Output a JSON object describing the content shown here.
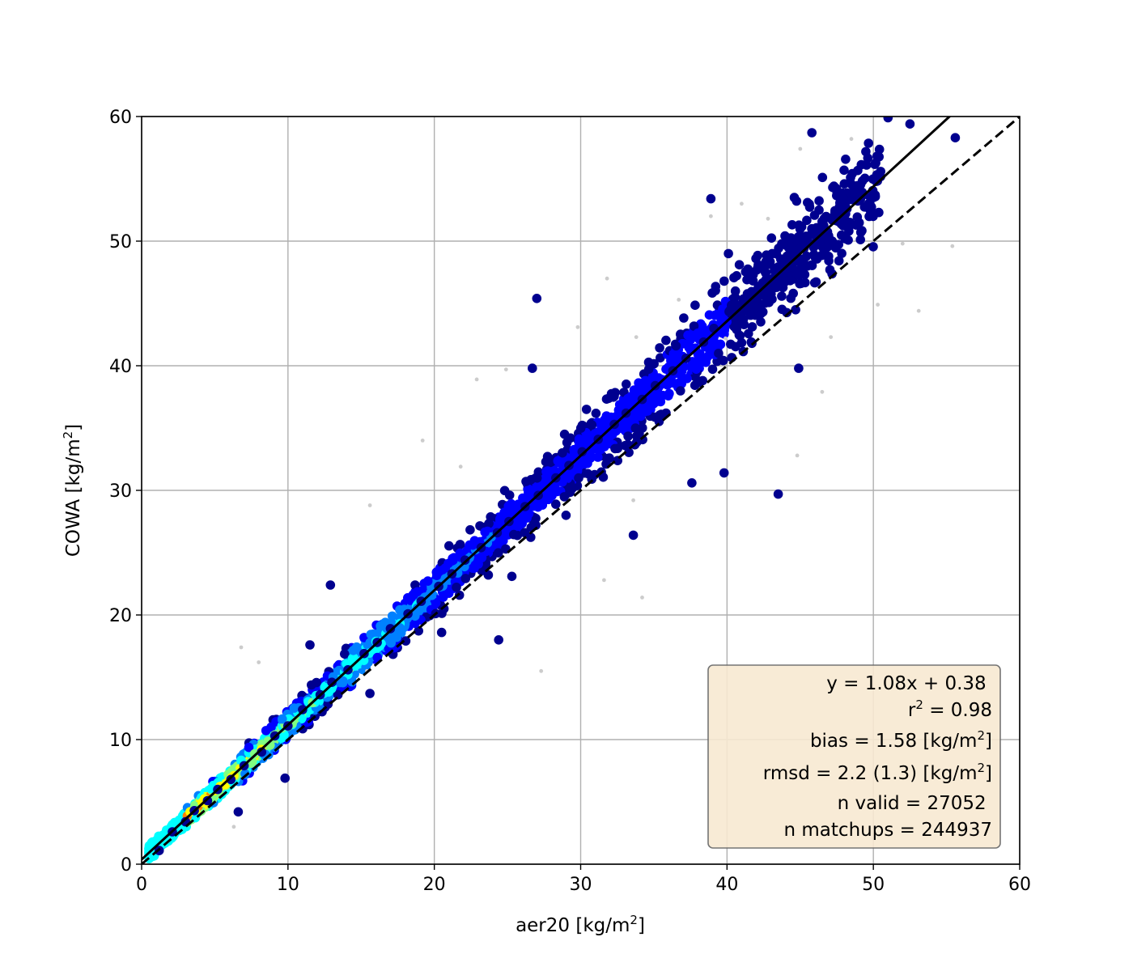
{
  "chart_data": {
    "type": "scatter",
    "title": "",
    "xlabel": {
      "text": "aer20 [kg/m",
      "sup": "2",
      "tail": "]"
    },
    "ylabel": {
      "text": "COWA [kg/m",
      "sup": "2",
      "tail": "]"
    },
    "xlim": [
      0,
      60
    ],
    "ylim": [
      0,
      60
    ],
    "xticks": [
      0,
      10,
      20,
      30,
      40,
      50,
      60
    ],
    "yticks": [
      0,
      10,
      20,
      30,
      40,
      50,
      60
    ],
    "grid": true,
    "fit_line": {
      "slope": 1.08,
      "intercept": 0.38,
      "style": "solid",
      "color": "#000000"
    },
    "identity_line": {
      "slope": 1.0,
      "intercept": 0.0,
      "style": "dashed",
      "color": "#000000"
    },
    "colormap": [
      "#00008f",
      "#0000ff",
      "#0080ff",
      "#00ffff",
      "#80ff80",
      "#ffff00",
      "#ff8000",
      "#ff0000"
    ],
    "background_points_color": "#cccccc",
    "stats_box": {
      "position": "bottom-right",
      "fill": "#f8e9d2",
      "lines": [
        {
          "text": "y = 1.08x + 0.38 "
        },
        {
          "pre": "r",
          "sup": "2",
          "post": " = 0.98"
        },
        {
          "pre": "bias = 1.58 [kg/m",
          "sup": "2",
          "post": "]"
        },
        {
          "pre": "rmsd = 2.2 (1.3) [kg/m",
          "sup": "2",
          "post": "]"
        },
        {
          "text": "n valid = 27052 "
        },
        {
          "text": "n matchups = 244937"
        }
      ]
    },
    "series": [
      {
        "role": "valid matchups (density-colored)",
        "points": [
          [
            1.2,
            1.1
          ],
          [
            2.1,
            2.6
          ],
          [
            3.0,
            3.4
          ],
          [
            3.6,
            4.3
          ],
          [
            4.5,
            5.1
          ],
          [
            5.2,
            6.0
          ],
          [
            6.1,
            6.8
          ],
          [
            7.0,
            7.9
          ],
          [
            8.2,
            9.0
          ],
          [
            9.1,
            10.3
          ],
          [
            10.0,
            11.1
          ],
          [
            11.0,
            12.4
          ],
          [
            12.2,
            13.6
          ],
          [
            13.0,
            14.6
          ],
          [
            14.1,
            15.6
          ],
          [
            15.2,
            16.9
          ],
          [
            16.1,
            17.8
          ],
          [
            17.0,
            18.9
          ],
          [
            18.2,
            20.1
          ],
          [
            19.1,
            21.1
          ],
          [
            20.3,
            22.3
          ],
          [
            21.2,
            23.3
          ],
          [
            22.1,
            24.4
          ],
          [
            23.2,
            25.4
          ],
          [
            24.3,
            26.6
          ],
          [
            25.1,
            27.5
          ],
          [
            26.2,
            28.7
          ],
          [
            27.1,
            29.6
          ],
          [
            28.3,
            31.0
          ],
          [
            29.2,
            32.0
          ],
          [
            30.1,
            33.1
          ],
          [
            31.2,
            34.1
          ],
          [
            32.3,
            35.3
          ],
          [
            33.1,
            36.2
          ],
          [
            34.2,
            37.3
          ],
          [
            35.1,
            38.4
          ],
          [
            36.3,
            39.6
          ],
          [
            37.2,
            40.6
          ],
          [
            38.4,
            41.9
          ],
          [
            39.1,
            43.0
          ],
          [
            40.5,
            44.1
          ],
          [
            41.6,
            45.3
          ],
          [
            42.2,
            46.1
          ],
          [
            43.5,
            47.2
          ],
          [
            44.3,
            48.4
          ],
          [
            45.1,
            49.5
          ],
          [
            46.2,
            50.4
          ],
          [
            47.4,
            51.9
          ],
          [
            48.2,
            52.6
          ],
          [
            49.3,
            53.7
          ],
          [
            12.9,
            22.4
          ],
          [
            11.5,
            17.6
          ],
          [
            27.0,
            45.4
          ],
          [
            26.7,
            39.8
          ],
          [
            24.4,
            18.0
          ],
          [
            30.4,
            36.5
          ],
          [
            38.9,
            53.4
          ],
          [
            39.8,
            31.4
          ],
          [
            43.5,
            29.7
          ],
          [
            33.6,
            26.4
          ],
          [
            37.6,
            30.6
          ],
          [
            40.1,
            49.0
          ],
          [
            44.9,
            39.8
          ],
          [
            41.7,
            41.8
          ],
          [
            45.8,
            58.7
          ],
          [
            51.0,
            59.9
          ],
          [
            52.5,
            59.4
          ],
          [
            55.6,
            58.3
          ],
          [
            50.2,
            54.8
          ],
          [
            44.6,
            53.5
          ],
          [
            6.6,
            4.2
          ],
          [
            9.8,
            6.9
          ],
          [
            15.6,
            13.7
          ],
          [
            20.5,
            18.6
          ],
          [
            25.3,
            23.1
          ],
          [
            29.0,
            28.0
          ],
          [
            35.5,
            36.1
          ],
          [
            28.9,
            34.5
          ]
        ]
      },
      {
        "role": "all matchups (background)",
        "points": [
          [
            6.8,
            17.4
          ],
          [
            8.0,
            16.2
          ],
          [
            15.4,
            15.5
          ],
          [
            22.9,
            38.9
          ],
          [
            24.9,
            39.7
          ],
          [
            29.8,
            43.1
          ],
          [
            31.8,
            47.0
          ],
          [
            33.8,
            42.3
          ],
          [
            36.7,
            45.3
          ],
          [
            38.9,
            52.0
          ],
          [
            41.0,
            53.0
          ],
          [
            42.8,
            51.8
          ],
          [
            45.0,
            57.4
          ],
          [
            48.5,
            58.2
          ],
          [
            50.3,
            44.9
          ],
          [
            53.1,
            44.4
          ],
          [
            55.4,
            49.6
          ],
          [
            52.0,
            49.8
          ],
          [
            39.9,
            42.2
          ],
          [
            47.1,
            42.3
          ],
          [
            33.6,
            29.2
          ],
          [
            34.2,
            21.4
          ],
          [
            31.6,
            22.8
          ],
          [
            27.3,
            15.5
          ],
          [
            44.8,
            32.8
          ],
          [
            46.5,
            37.9
          ],
          [
            6.3,
            3.0
          ],
          [
            19.2,
            34.0
          ],
          [
            15.6,
            28.8
          ],
          [
            21.8,
            31.9
          ]
        ]
      }
    ]
  }
}
